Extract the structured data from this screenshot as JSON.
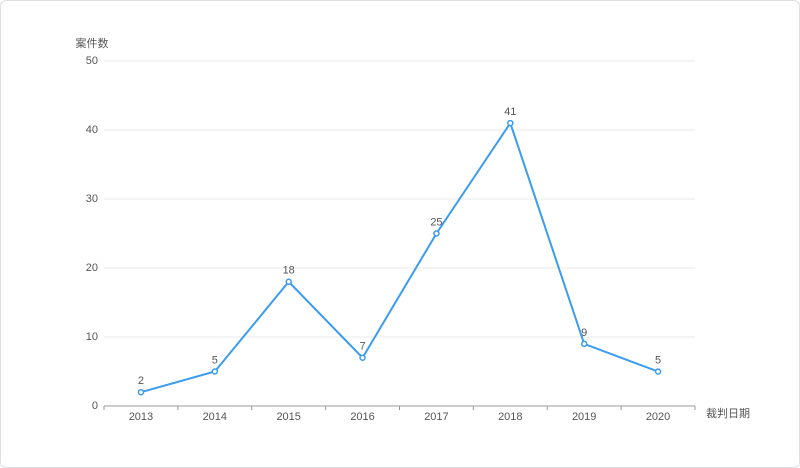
{
  "chart_data": {
    "type": "line",
    "y_axis_label": "案件数",
    "x_axis_label": "裁判日期",
    "categories": [
      "2013",
      "2014",
      "2015",
      "2016",
      "2017",
      "2018",
      "2019",
      "2020"
    ],
    "series": [
      {
        "color": "#3a9cf0",
        "values": [
          2,
          5,
          18,
          7,
          25,
          41,
          9,
          5
        ]
      }
    ],
    "ylim": [
      0,
      50
    ],
    "yticks": [
      0,
      10,
      20,
      30,
      40,
      50
    ],
    "grid": true
  }
}
